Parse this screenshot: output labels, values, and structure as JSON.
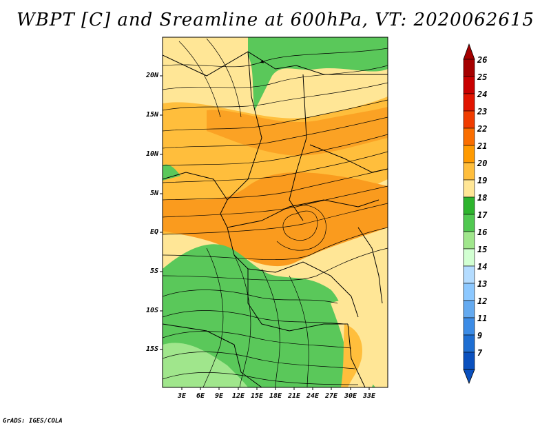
{
  "title": "WBPT [C] and Sreamline at 600hPa, VT: 2020062615",
  "footer": "GrADS: IGES/COLA",
  "lat_labels": [
    "20N",
    "15N",
    "10N",
    "5N",
    "EQ",
    "5S",
    "10S",
    "15S"
  ],
  "lon_labels": [
    "3E",
    "6E",
    "9E",
    "12E",
    "15E",
    "18E",
    "21E",
    "24E",
    "27E",
    "30E",
    "33E"
  ],
  "colorbar": {
    "labels": [
      "26",
      "25",
      "24",
      "23",
      "22",
      "21",
      "20",
      "19",
      "18",
      "17",
      "16",
      "15",
      "14",
      "13",
      "12",
      "11",
      "9",
      "7"
    ],
    "colors": [
      "#a50000",
      "#c80000",
      "#e11400",
      "#f03c00",
      "#fa6e00",
      "#ff9a00",
      "#ffbe3c",
      "#ffe696",
      "#2db42d",
      "#50c850",
      "#a0e68c",
      "#d2ffd2",
      "#b4dcff",
      "#8cc8ff",
      "#64aaf0",
      "#3c8ce6",
      "#1e6ed2",
      "#0a50be"
    ]
  },
  "colors": {
    "green": "#5ac85a",
    "light_green": "#a0e68c",
    "yellow": "#ffe696",
    "orange": "#ffbe3c",
    "dark_orange": "#fa9b1e"
  }
}
